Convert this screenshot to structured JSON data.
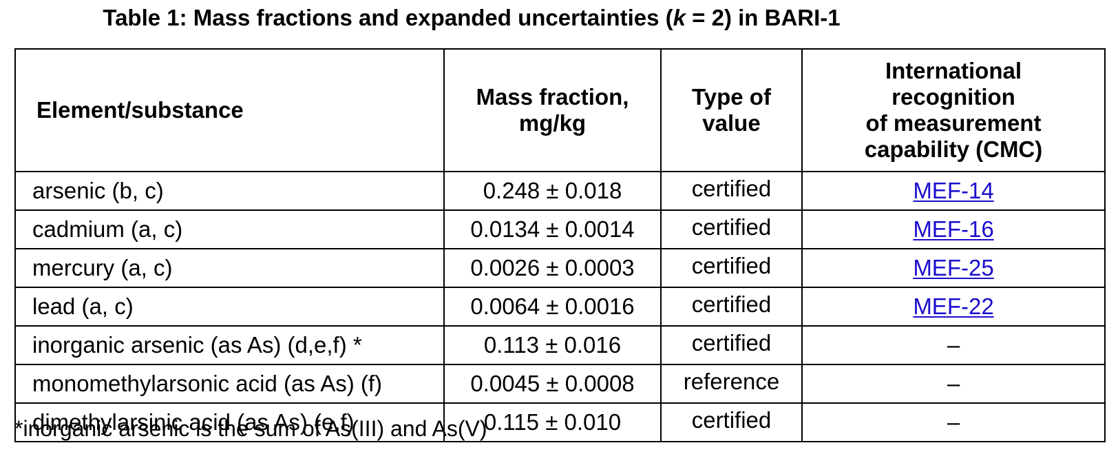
{
  "caption": {
    "prefix": "Table 1: Mass fractions and expanded uncertainties (",
    "k": "k",
    "suffix": " = 2) in BARI-1"
  },
  "table": {
    "headers": {
      "element": "Element/substance",
      "mass_fraction": [
        "Mass fraction,",
        "mg/kg"
      ],
      "type_of_value": [
        "Type of",
        "value"
      ],
      "cmc": [
        "International",
        "recognition",
        "of measurement",
        "capability (CMC)"
      ]
    },
    "rows": [
      {
        "element": "arsenic (b, c)",
        "mass_fraction": "0.248 ± 0.018",
        "type": "certified",
        "cmc": "MEF-14"
      },
      {
        "element": "cadmium (a, c)",
        "mass_fraction": "0.0134 ± 0.0014",
        "type": "certified",
        "cmc": "MEF-16"
      },
      {
        "element": "mercury (a, c)",
        "mass_fraction": "0.0026 ± 0.0003",
        "type": "certified",
        "cmc": "MEF-25"
      },
      {
        "element": "lead (a, c)",
        "mass_fraction": "0.0064 ± 0.0016",
        "type": "certified",
        "cmc": "MEF-22"
      },
      {
        "element": "inorganic arsenic (as As) (d,e,f) *",
        "mass_fraction": "0.113 ± 0.016",
        "type": "certified",
        "cmc": "–"
      },
      {
        "element": "monomethylarsonic acid (as As) (f)",
        "mass_fraction": "0.0045 ± 0.0008",
        "type": "reference",
        "cmc": "–"
      },
      {
        "element": "dimethylarsinic acid (as As) (e,f)",
        "mass_fraction": "0.115 ± 0.010",
        "type": "certified",
        "cmc": "–"
      }
    ]
  },
  "footnote": "*inorganic arsenic is the sum of As(III) and As(V)",
  "colors": {
    "link": "#1a0dcc",
    "border": "#000000",
    "text": "#000000"
  }
}
